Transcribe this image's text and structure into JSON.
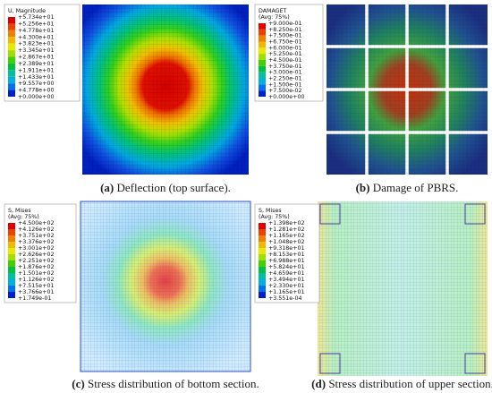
{
  "panels": [
    {
      "legend": {
        "title": "U, Magnitude",
        "values": [
          "+5.734e+01",
          "+5.256e+01",
          "+4.778e+01",
          "+4.300e+01",
          "+3.823e+01",
          "+3.345e+01",
          "+2.867e+01",
          "+2.389e+01",
          "+1.911e+01",
          "+1.433e+01",
          "+9.557e+00",
          "+4.778e+00",
          "+0.000e+00"
        ]
      },
      "caption": {
        "label": "(a)",
        "text": "Deflection (top surface)."
      }
    },
    {
      "legend": {
        "title": "DAMAGET",
        "subtitle": "(Avg: 75%)",
        "values": [
          "+9.000e-01",
          "+8.250e-01",
          "+7.500e-01",
          "+6.750e-01",
          "+6.000e-01",
          "+5.250e-01",
          "+4.500e-01",
          "+3.750e-01",
          "+3.000e-01",
          "+2.250e-01",
          "+1.500e-01",
          "+7.500e-02",
          "+0.000e+00"
        ]
      },
      "caption": {
        "label": "(b)",
        "text": "Damage of PBRS."
      }
    },
    {
      "legend": {
        "title": "S, Mises",
        "subtitle": "(Avg: 75%)",
        "values": [
          "+4.500e+02",
          "+4.126e+02",
          "+3.751e+02",
          "+3.376e+02",
          "+3.001e+02",
          "+2.626e+02",
          "+2.251e+02",
          "+1.876e+02",
          "+1.501e+02",
          "+1.126e+02",
          "+7.515e+01",
          "+3.766e+01",
          "+1.749e-01"
        ]
      },
      "caption": {
        "label": "(c)",
        "text": "Stress distribution of bottom section."
      }
    },
    {
      "legend": {
        "title": "S, Mises",
        "subtitle": "(Avg: 75%)",
        "values": [
          "+1.398e+02",
          "+1.281e+02",
          "+1.165e+02",
          "+1.048e+02",
          "+9.318e+01",
          "+8.153e+01",
          "+6.988e+01",
          "+5.824e+01",
          "+4.659e+01",
          "+3.494e+01",
          "+2.330e+01",
          "+1.165e+01",
          "+3.551e-04"
        ]
      },
      "caption": {
        "label": "(d)",
        "text": "Stress distribution of upper section."
      }
    }
  ]
}
